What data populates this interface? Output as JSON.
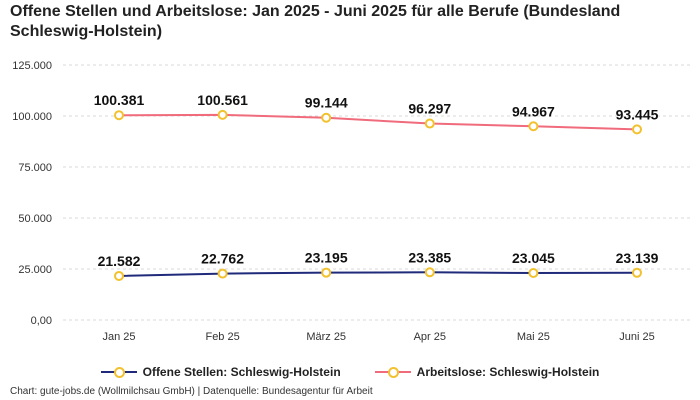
{
  "chart_data": {
    "type": "line",
    "title": "Offene Stellen und Arbeitslose: Jan 2025 - Juni 2025 für alle Berufe (Bundesland Schleswig-Holstein)",
    "categories": [
      "Jan 25",
      "Feb 25",
      "März 25",
      "Apr 25",
      "Mai 25",
      "Juni 25"
    ],
    "ylim": [
      0,
      125000
    ],
    "yticks": [
      0,
      25000,
      50000,
      75000,
      100000,
      125000
    ],
    "ytick_labels": [
      "0,00",
      "25.000",
      "50.000",
      "75.000",
      "100.000",
      "125.000"
    ],
    "grid": true,
    "legend_position": "bottom",
    "series": [
      {
        "name": "Offene Stellen: Schleswig-Holstein",
        "values": [
          21582,
          22762,
          23195,
          23385,
          23045,
          23139
        ],
        "labels": [
          "21.582",
          "22.762",
          "23.195",
          "23.385",
          "23.045",
          "23.139"
        ],
        "line_color": "#1f2a7a",
        "marker_color": "#f2c12e"
      },
      {
        "name": "Arbeitslose: Schleswig-Holstein",
        "values": [
          100381,
          100561,
          99144,
          96297,
          94967,
          93445
        ],
        "labels": [
          "100.381",
          "100.561",
          "99.144",
          "96.297",
          "94.967",
          "93.445"
        ],
        "line_color": "#f06b7c",
        "marker_color": "#f2c12e"
      }
    ],
    "source": "Chart: gute-jobs.de (Wollmilchsau GmbH) | Datenquelle: Bundesagentur für Arbeit"
  }
}
